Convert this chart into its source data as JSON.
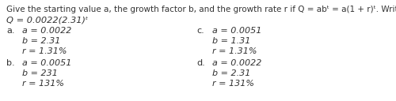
{
  "bg_color": "#ffffff",
  "header": "Give the starting value a, the growth factor b, and the growth rate r if Q = abᵗ = a(1 + r)ᵗ. Write r as a percent.",
  "equation": "Q = 0.0022(2.31)ᵗ",
  "options": [
    {
      "label": "a.",
      "lines": [
        "a = 0.0022",
        "b = 2.31",
        "r = 1.31%"
      ]
    },
    {
      "label": "b.",
      "lines": [
        "a = 0.0051",
        "b = 231",
        "r = 131%"
      ]
    },
    {
      "label": "c.",
      "lines": [
        "a = 0.0051",
        "b = 1.31",
        "r = 1.31%"
      ]
    },
    {
      "label": "d.",
      "lines": [
        "a = 0.0022",
        "b = 2.31",
        "r = 131%"
      ]
    }
  ],
  "font_size_header": 7.5,
  "font_size_eq": 8.2,
  "font_size_options": 8.0,
  "text_color": "#333333",
  "label_color": "#333333"
}
